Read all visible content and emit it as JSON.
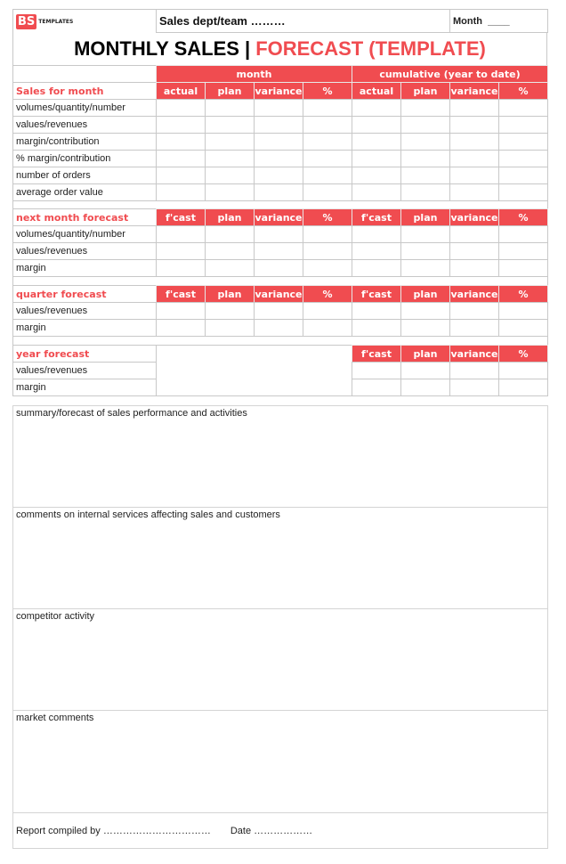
{
  "header": {
    "logo_text": "BS",
    "logo_sub": "TEMPLATES",
    "dept_label": "Sales dept/team ………",
    "month_label": "Month",
    "month_blank": "____"
  },
  "title": {
    "black": "MONTHLY SALES | ",
    "red": "FORECAST (TEMPLATE)"
  },
  "groups": {
    "month": "month",
    "cumulative": "cumulative (year to date)"
  },
  "sections": [
    {
      "title": "Sales for month",
      "cols": [
        "actual",
        "plan",
        "variance",
        "%",
        "actual",
        "plan",
        "variance",
        "%"
      ],
      "rows": [
        "volumes/quantity/number",
        "values/revenues",
        "margin/contribution",
        "% margin/contribution",
        "number of orders",
        "average order value"
      ]
    },
    {
      "title": "next month forecast",
      "cols": [
        "f'cast",
        "plan",
        "variance",
        "%",
        "f'cast",
        "plan",
        "variance",
        "%"
      ],
      "rows": [
        "volumes/quantity/number",
        "values/revenues",
        "margin"
      ]
    },
    {
      "title": "quarter forecast",
      "cols": [
        "f'cast",
        "plan",
        "variance",
        "%",
        "f'cast",
        "plan",
        "variance",
        "%"
      ],
      "rows": [
        "values/revenues",
        "margin"
      ]
    },
    {
      "title": "year forecast",
      "cols": [
        "f'cast",
        "plan",
        "variance",
        "%"
      ],
      "rows": [
        "values/revenues",
        "margin"
      ]
    }
  ],
  "notes": [
    "summary/forecast of sales performance and activities",
    "comments on internal services affecting sales and customers",
    "competitor activity",
    "market comments"
  ],
  "footer": {
    "compiled": "Report compiled by ……………………………",
    "date": "Date ………………"
  },
  "colors": {
    "accent": "#f04c50"
  }
}
